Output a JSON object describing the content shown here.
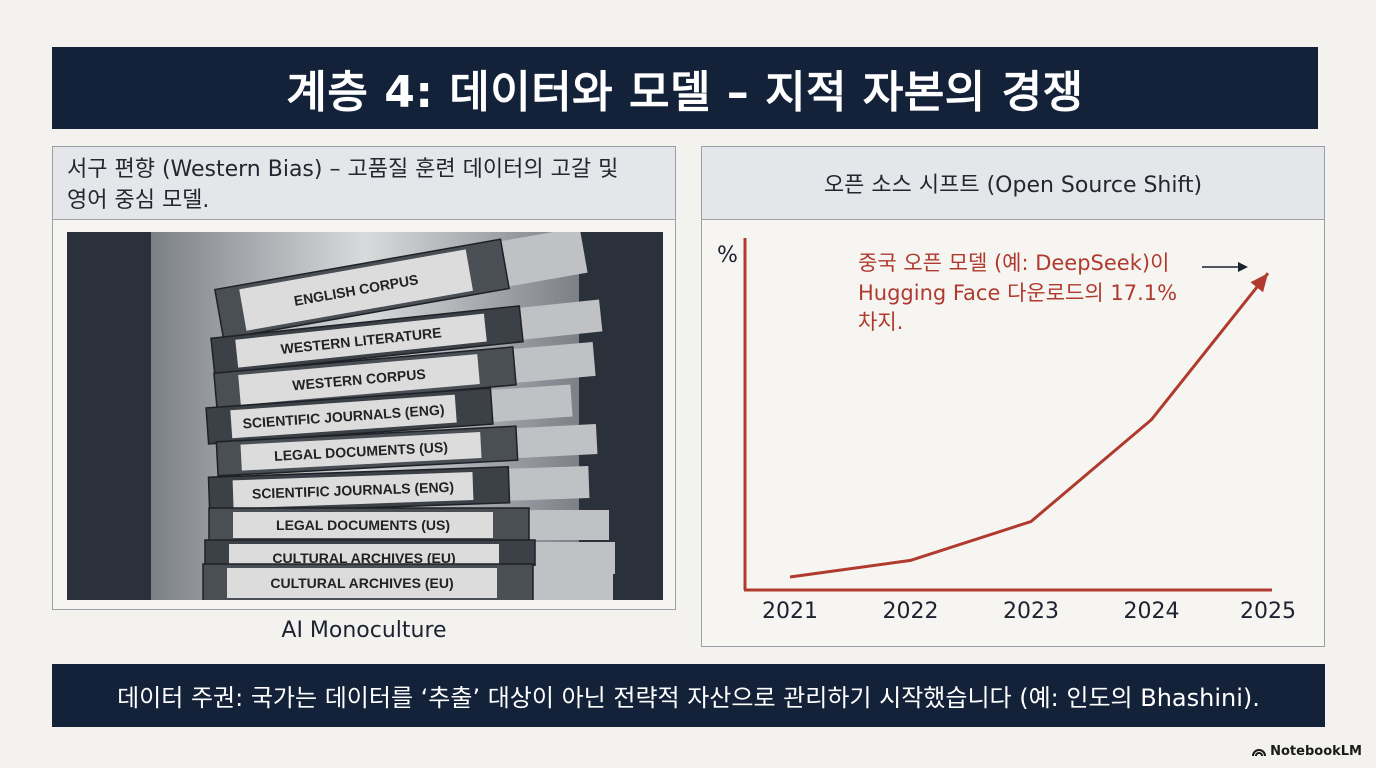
{
  "title": "계층 4: 데이터와 모델 – 지적 자본의 경쟁",
  "left_panel": {
    "header_line1": "서구 편향 (Western Bias) – 고품질 훈련 데이터의 고갈 및",
    "header_line2": "영어 중심 모델.",
    "caption": "AI Monoculture",
    "book_spines": [
      "ENGLISH CORPUS",
      "WESTERN LITERATURE",
      "WESTERN CORPUS",
      "SCIENTIFIC JOURNALS (ENG)",
      "LEGAL DOCUMENTS (US)",
      "SCIENTIFIC JOURNALS (ENG)",
      "LEGAL DOCUMENTS (US)",
      "CULTURAL ARCHIVES (EU)",
      "CULTURAL ARCHIVES (EU)"
    ]
  },
  "right_panel": {
    "header": "오픈 소스 시프트 (Open Source Shift)"
  },
  "chart_data": {
    "type": "line",
    "ylabel": "%",
    "x": [
      "2021",
      "2022",
      "2023",
      "2024",
      "2025"
    ],
    "series": [
      {
        "values": [
          0.7,
          1.6,
          3.7,
          9.2,
          17.1
        ]
      }
    ],
    "ylim": [
      0,
      19
    ],
    "annotation_line1": "중국 오픈 모델 (예: DeepSeek)이",
    "annotation_line2": "Hugging Face 다운로드의 17.1%",
    "annotation_line3": "차지.",
    "color": "#b03a2e"
  },
  "footer": "데이터 주권: 국가는 데이터를 ‘추출’ 대상이 아닌 전략적 자산으로 관리하기 시작했습니다 (예: 인도의 Bhashini).",
  "brand": "NotebookLM"
}
